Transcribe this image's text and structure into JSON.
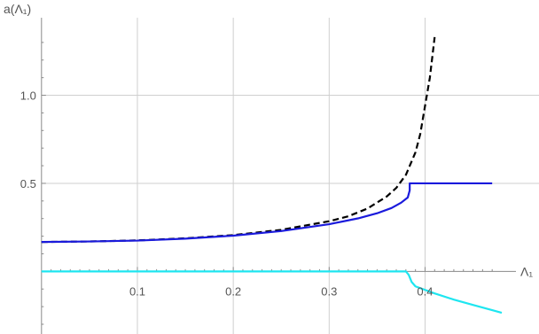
{
  "chart_data": {
    "type": "line",
    "xlabel": "Λ₁",
    "ylabel": "a(Λ₁)",
    "xlim": [
      -0.01,
      0.48
    ],
    "ylim": [
      -0.3,
      1.4
    ],
    "grid": true,
    "x_ticks": [
      {
        "value": 0.1,
        "label": "0.1"
      },
      {
        "value": 0.2,
        "label": "0.2"
      },
      {
        "value": 0.3,
        "label": "0.3"
      },
      {
        "value": 0.4,
        "label": "0.4"
      }
    ],
    "y_ticks": [
      {
        "value": 0.5,
        "label": "0.5"
      },
      {
        "value": 1.0,
        "label": "1.0"
      }
    ],
    "series": [
      {
        "color": "#000000",
        "style": "dashed",
        "points": [
          [
            0.0,
            0.167
          ],
          [
            0.05,
            0.17
          ],
          [
            0.1,
            0.176
          ],
          [
            0.15,
            0.188
          ],
          [
            0.2,
            0.206
          ],
          [
            0.25,
            0.236
          ],
          [
            0.3,
            0.285
          ],
          [
            0.32,
            0.313
          ],
          [
            0.34,
            0.357
          ],
          [
            0.36,
            0.425
          ],
          [
            0.37,
            0.474
          ],
          [
            0.38,
            0.548
          ],
          [
            0.39,
            0.676
          ],
          [
            0.395,
            0.78
          ],
          [
            0.4,
            0.94
          ],
          [
            0.405,
            1.1
          ],
          [
            0.41,
            1.33
          ]
        ]
      },
      {
        "color": "#1a1adc",
        "style": "solid",
        "points": [
          [
            0.0,
            0.167
          ],
          [
            0.05,
            0.17
          ],
          [
            0.1,
            0.175
          ],
          [
            0.15,
            0.186
          ],
          [
            0.2,
            0.203
          ],
          [
            0.25,
            0.229
          ],
          [
            0.3,
            0.268
          ],
          [
            0.33,
            0.301
          ],
          [
            0.35,
            0.33
          ],
          [
            0.365,
            0.36
          ],
          [
            0.375,
            0.39
          ],
          [
            0.382,
            0.42
          ],
          [
            0.384,
            0.46
          ],
          [
            0.384,
            0.5
          ],
          [
            0.42,
            0.5
          ],
          [
            0.47,
            0.5
          ]
        ]
      },
      {
        "color": "#1ee6f0",
        "style": "solid",
        "points": [
          [
            0.0,
            0.0
          ],
          [
            0.1,
            0.0
          ],
          [
            0.2,
            0.0
          ],
          [
            0.3,
            0.0
          ],
          [
            0.38,
            0.0
          ],
          [
            0.383,
            -0.02
          ],
          [
            0.386,
            -0.06
          ],
          [
            0.39,
            -0.085
          ],
          [
            0.41,
            -0.125
          ],
          [
            0.43,
            -0.16
          ],
          [
            0.45,
            -0.19
          ],
          [
            0.47,
            -0.22
          ],
          [
            0.48,
            -0.235
          ]
        ]
      }
    ]
  }
}
